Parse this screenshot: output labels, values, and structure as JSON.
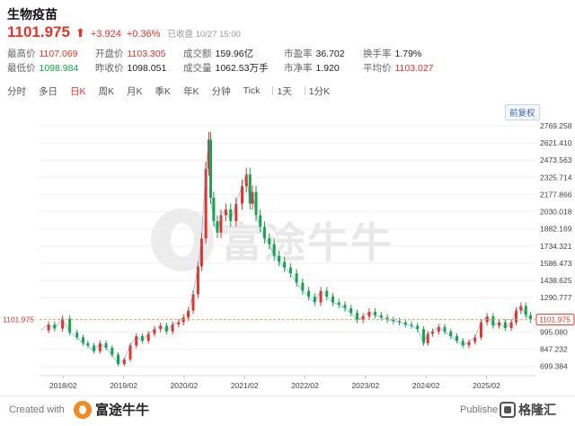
{
  "header": {
    "title": "生物疫苗",
    "price": "1101.975",
    "arrow": "⬆",
    "change": "+3.924",
    "change_pct": "+0.36%",
    "status": "已收盘 10/27 15:00"
  },
  "stats": {
    "row1": [
      {
        "label": "最高价",
        "value": "1107.069",
        "tone": "red"
      },
      {
        "label": "开盘价",
        "value": "1103.305",
        "tone": "red"
      },
      {
        "label": "成交额",
        "value": "159.96亿",
        "tone": "normal"
      },
      {
        "label": "市盈率",
        "value": "36.702",
        "tone": "normal"
      },
      {
        "label": "换手率",
        "value": "1.79%",
        "tone": "normal"
      }
    ],
    "row2": [
      {
        "label": "最低价",
        "value": "1098.984",
        "tone": "green"
      },
      {
        "label": "昨收价",
        "value": "1098.051",
        "tone": "normal"
      },
      {
        "label": "成交量",
        "value": "1062.53万手",
        "tone": "normal"
      },
      {
        "label": "市净率",
        "value": "1.920",
        "tone": "normal"
      },
      {
        "label": "平均价",
        "value": "1103.027",
        "tone": "red"
      }
    ]
  },
  "tabs": [
    "分时",
    "多日",
    "日K",
    "周K",
    "月K",
    "季K",
    "年K",
    "分钟",
    "Tick",
    "1天",
    "1分K"
  ],
  "active_tab": "日K",
  "adjust_label": "前复权",
  "watermark": "富途牛牛",
  "footer": {
    "created_with": "Created with",
    "brand": "富途牛牛",
    "published_by": "Publishe",
    "publisher": "格隆汇"
  },
  "colors": {
    "up": "#e0352b",
    "down": "#1aa34a",
    "line": "#3a8fd6",
    "current": "#f5a06a"
  },
  "chart_data": {
    "type": "line",
    "title": "",
    "xlabel": "",
    "ylabel": "",
    "ylim": [
      620,
      2800
    ],
    "y_ticks": [
      "2769.258",
      "2621.410",
      "2473.563",
      "2325.714",
      "2177.866",
      "2030.018",
      "1882.169",
      "1734.321",
      "1586.473",
      "1438.625",
      "1290.777",
      "1101.975",
      "995.080",
      "847.232",
      "699.384"
    ],
    "y_tick_values": [
      2769.258,
      2621.41,
      2473.563,
      2325.714,
      2177.866,
      2030.018,
      1882.169,
      1734.321,
      1586.473,
      1438.625,
      1290.777,
      1101.975,
      995.08,
      847.232,
      699.384
    ],
    "x_ticks": [
      "2018/02",
      "2019/02",
      "2020/02",
      "2021/02",
      "2022/02",
      "2023/02",
      "2024/02",
      "2025/02"
    ],
    "x_tick_values": [
      2018.09,
      2019.09,
      2020.09,
      2021.09,
      2022.09,
      2023.09,
      2024.09,
      2025.09
    ],
    "x_range": [
      2017.7,
      2025.9
    ],
    "current_price": 1101.975,
    "current_label": "1101.975",
    "x": [
      2017.72,
      2017.85,
      2017.95,
      2018.08,
      2018.2,
      2018.32,
      2018.42,
      2018.5,
      2018.6,
      2018.7,
      2018.8,
      2018.9,
      2019.0,
      2019.1,
      2019.2,
      2019.3,
      2019.4,
      2019.5,
      2019.6,
      2019.7,
      2019.8,
      2019.9,
      2020.0,
      2020.08,
      2020.16,
      2020.24,
      2020.32,
      2020.38,
      2020.45,
      2020.5,
      2020.53,
      2020.58,
      2020.64,
      2020.7,
      2020.78,
      2020.86,
      2020.95,
      2021.05,
      2021.12,
      2021.18,
      2021.22,
      2021.28,
      2021.35,
      2021.42,
      2021.5,
      2021.58,
      2021.66,
      2021.75,
      2021.85,
      2021.95,
      2022.05,
      2022.15,
      2022.25,
      2022.35,
      2022.45,
      2022.55,
      2022.65,
      2022.75,
      2022.85,
      2022.95,
      2023.05,
      2023.15,
      2023.25,
      2023.35,
      2023.45,
      2023.55,
      2023.65,
      2023.75,
      2023.85,
      2023.95,
      2024.05,
      2024.12,
      2024.2,
      2024.3,
      2024.4,
      2024.5,
      2024.6,
      2024.7,
      2024.8,
      2024.9,
      2025.0,
      2025.1,
      2025.2,
      2025.3,
      2025.4,
      2025.5,
      2025.58,
      2025.66,
      2025.74,
      2025.82
    ],
    "y": [
      1010,
      1060,
      1025,
      1110,
      990,
      950,
      900,
      880,
      830,
      900,
      860,
      800,
      720,
      760,
      880,
      960,
      920,
      980,
      1020,
      1050,
      1000,
      1060,
      1080,
      1120,
      1180,
      1320,
      1560,
      1800,
      2400,
      2650,
      2150,
      1950,
      1850,
      2000,
      2050,
      1950,
      2100,
      2250,
      2350,
      2100,
      2200,
      2000,
      1900,
      1800,
      1750,
      1650,
      1600,
      1550,
      1500,
      1420,
      1350,
      1300,
      1250,
      1350,
      1300,
      1250,
      1230,
      1200,
      1160,
      1100,
      1130,
      1170,
      1140,
      1120,
      1100,
      1090,
      1080,
      1060,
      1050,
      1020,
      900,
      980,
      1000,
      1040,
      1000,
      960,
      920,
      880,
      910,
      950,
      1080,
      1130,
      1050,
      1080,
      1030,
      1080,
      1180,
      1220,
      1140,
      1101.975
    ]
  }
}
